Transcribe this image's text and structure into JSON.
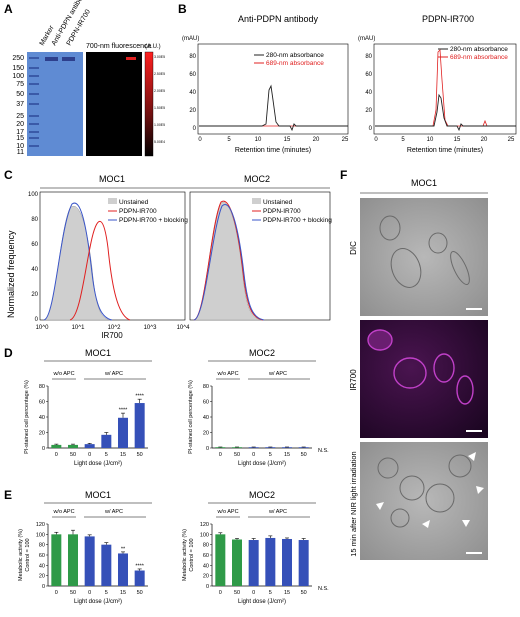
{
  "panels": {
    "A": "A",
    "B": "B",
    "C": "C",
    "D": "D",
    "E": "E",
    "F": "F"
  },
  "colors": {
    "gel": "#5f8bd3",
    "band": "#2d3f8c",
    "black": "#000000",
    "red": "#e02020",
    "blue": "#3a55c8",
    "green": "#2e9b4a",
    "bar_blue": "#3550b8",
    "bar_green": "#2f9a48",
    "unstained": "#cfcfcf",
    "ir_magenta": "#c040c8"
  },
  "panelA": {
    "lanes": [
      "Marker",
      "Anti-PDPN antibody",
      "PDPN-IR700"
    ],
    "mw": [
      "250",
      "150",
      "100",
      "75",
      "50",
      "37",
      "25",
      "20",
      "15",
      "10"
    ],
    "mw_extra": [
      "17",
      "11"
    ],
    "fluor_title": "700-nm fluorescence",
    "scale_unit": "(A.U.)",
    "scale_ticks": [
      "3.00E5",
      "2.50E5",
      "2.00E5",
      "1.50E5",
      "1.00E5",
      "5.00E4"
    ]
  },
  "panelB": [
    {
      "title": "Anti-PDPN antibody",
      "unit": "(mAU)",
      "xlabel": "Retention time (minutes)",
      "legend": [
        "280-nm absorbance",
        "689-nm absorbance"
      ],
      "yticks": [
        "80",
        "60",
        "40",
        "20",
        "0"
      ],
      "xticks": [
        "0",
        "5",
        "10",
        "15",
        "20",
        "25"
      ]
    },
    {
      "title": "PDPN-IR700",
      "unit": "(mAU)",
      "xlabel": "Retention time (minutes)",
      "legend": [
        "280-nm absorbance",
        "689-nm absorbance"
      ],
      "yticks": [
        "80",
        "60",
        "40",
        "20",
        "0"
      ],
      "xticks": [
        "0",
        "5",
        "10",
        "15",
        "20",
        "25"
      ]
    }
  ],
  "panelC": {
    "ylabel": "Normalized frequency",
    "xlabel": "IR700",
    "plots": [
      {
        "title": "MOC1",
        "legend": [
          "Unstained",
          "PDPN-IR700",
          "PDPN-IR700 + blocking"
        ]
      },
      {
        "title": "MOC2",
        "legend": [
          "Unstained",
          "PDPN-IR700",
          "PDPN-IR700 + blocking"
        ]
      }
    ],
    "yticks": [
      "100",
      "80",
      "60",
      "40",
      "20",
      "0"
    ],
    "xticks": [
      "10^0",
      "10^1",
      "10^2",
      "10^3",
      "10^4"
    ]
  },
  "chart_data": [
    {
      "type": "bar",
      "title": "MOC1",
      "ylabel": "PI-stained cell percentage (%)",
      "xlabel": "Light dose (J/cm²)",
      "categories": [
        "0",
        "50",
        "0",
        "5",
        "15",
        "50"
      ],
      "values": [
        4,
        4,
        5,
        17,
        39,
        58
      ],
      "errors": [
        1,
        1,
        1,
        3,
        6,
        5
      ],
      "groups": [
        "w/o APC",
        "w/ APC"
      ],
      "sig": [
        "",
        "",
        "",
        "",
        "****",
        "****"
      ],
      "ylim": [
        0,
        80
      ],
      "yticks": [
        "0",
        "20",
        "40",
        "60",
        "80"
      ]
    },
    {
      "type": "bar",
      "title": "MOC2",
      "ylabel": "PI-stained cell percentage (%)",
      "xlabel": "Light dose (J/cm²)",
      "categories": [
        "0",
        "50",
        "0",
        "5",
        "15",
        "50"
      ],
      "values": [
        1,
        1,
        1,
        1,
        1,
        1
      ],
      "errors": [
        0.3,
        0.3,
        0.3,
        0.3,
        0.3,
        0.3
      ],
      "groups": [
        "w/o APC",
        "w/ APC"
      ],
      "sig": [
        "",
        "",
        "",
        "",
        "",
        ""
      ],
      "note": "N.S.",
      "ylim": [
        0,
        80
      ],
      "yticks": [
        "0",
        "20",
        "40",
        "60",
        "80"
      ]
    },
    {
      "type": "bar",
      "title": "MOC1",
      "ylabel": "Metabolic activity (%) Control = 100",
      "xlabel": "Light dose (J/cm²)",
      "categories": [
        "0",
        "50",
        "0",
        "5",
        "15",
        "50"
      ],
      "values": [
        100,
        100,
        96,
        80,
        63,
        30
      ],
      "errors": [
        4,
        8,
        3,
        4,
        3,
        3
      ],
      "groups": [
        "w/o APC",
        "w/ APC"
      ],
      "sig": [
        "",
        "",
        "",
        "",
        "**",
        "****"
      ],
      "ylim": [
        0,
        120
      ],
      "yticks": [
        "0",
        "20",
        "40",
        "60",
        "80",
        "100",
        "120"
      ]
    },
    {
      "type": "bar",
      "title": "MOC2",
      "ylabel": "Metabolic activity (%) Control = 100",
      "xlabel": "Light dose (J/cm²)",
      "categories": [
        "0",
        "50",
        "0",
        "5",
        "15",
        "50"
      ],
      "values": [
        100,
        90,
        89,
        93,
        91,
        89
      ],
      "errors": [
        3,
        2,
        3,
        4,
        2,
        3
      ],
      "groups": [
        "w/o APC",
        "w/ APC"
      ],
      "sig": [
        "",
        "",
        "",
        "",
        "",
        ""
      ],
      "note": "N.S.",
      "ylim": [
        0,
        120
      ],
      "yticks": [
        "0",
        "20",
        "40",
        "60",
        "80",
        "100",
        "120"
      ]
    }
  ],
  "panelF": {
    "title": "MOC1",
    "rows": [
      "DIC",
      "IR700",
      "15 min after NIR light irradiation"
    ]
  }
}
